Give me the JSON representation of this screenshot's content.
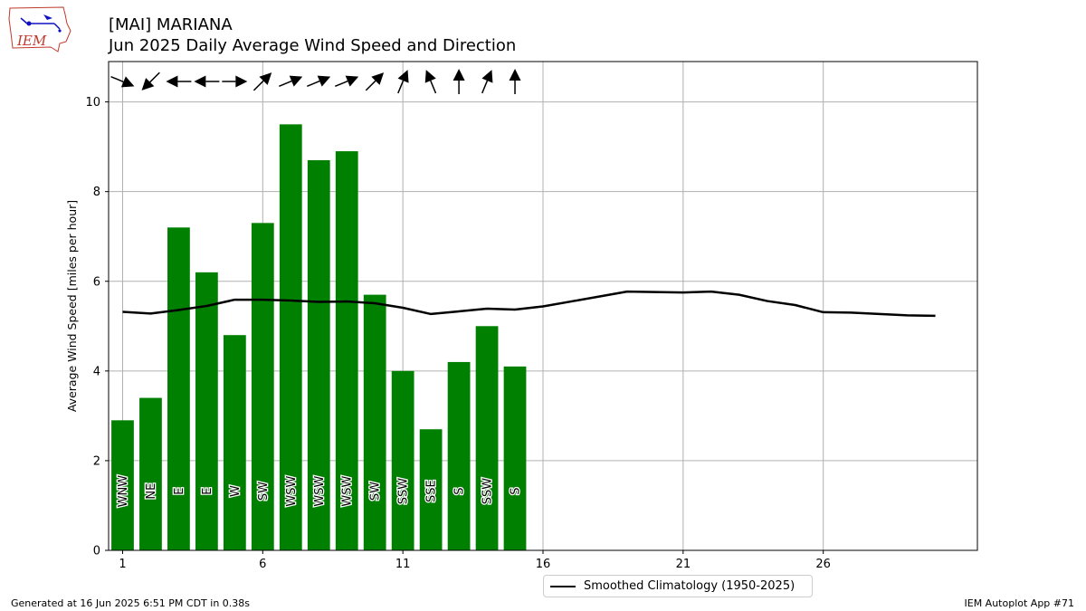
{
  "header": {
    "title_line1": "[MAI] MARIANA",
    "title_line2": "Jun 2025 Daily Average Wind Speed and Direction",
    "logo_text": "IEM"
  },
  "footer": {
    "left": "Generated at 16 Jun 2025 6:51 PM CDT in 0.38s",
    "right": "IEM Autoplot App #71"
  },
  "legend": {
    "climatology_label": "Smoothed Climatology (1950-2025)"
  },
  "colors": {
    "bar": "#008000",
    "climatology_line": "#000000",
    "grid": "#b0b0b0"
  },
  "chart_data": {
    "type": "bar",
    "ylabel": "Average Wind Speed [miles per hour]",
    "xlabel": "",
    "ylim": [
      0,
      10.9
    ],
    "xlim": [
      0.5,
      31.5
    ],
    "xticks": [
      1,
      6,
      11,
      16,
      21,
      26
    ],
    "yticks": [
      0,
      2,
      4,
      6,
      8,
      10
    ],
    "grid": true,
    "legend_position": "bottom-center",
    "days": [
      1,
      2,
      3,
      4,
      5,
      6,
      7,
      8,
      9,
      10,
      11,
      12,
      13,
      14,
      15
    ],
    "values": [
      2.9,
      3.4,
      7.2,
      6.2,
      4.8,
      7.3,
      9.5,
      8.7,
      8.9,
      5.7,
      4.0,
      2.7,
      4.2,
      5.0,
      4.1
    ],
    "directions": [
      "WNW",
      "NE",
      "E",
      "E",
      "W",
      "SW",
      "WSW",
      "WSW",
      "WSW",
      "SW",
      "SSW",
      "SSE",
      "S",
      "SSW",
      "S"
    ],
    "direction_degrees": [
      292.5,
      45,
      90,
      90,
      270,
      225,
      247.5,
      247.5,
      247.5,
      225,
      202.5,
      157.5,
      180,
      202.5,
      180
    ],
    "series": [
      {
        "name": "Smoothed Climatology (1950-2025)",
        "x": [
          1,
          2,
          3,
          4,
          5,
          6,
          7,
          8,
          9,
          10,
          11,
          12,
          13,
          14,
          15,
          16,
          17,
          18,
          19,
          20,
          21,
          22,
          23,
          24,
          25,
          26,
          27,
          28,
          29,
          30
        ],
        "values": [
          5.32,
          5.28,
          5.36,
          5.45,
          5.59,
          5.59,
          5.57,
          5.54,
          5.55,
          5.51,
          5.41,
          5.27,
          5.33,
          5.39,
          5.37,
          5.44,
          5.55,
          5.66,
          5.77,
          5.76,
          5.75,
          5.77,
          5.7,
          5.56,
          5.47,
          5.31,
          5.3,
          5.27,
          5.24,
          5.23
        ]
      }
    ]
  }
}
